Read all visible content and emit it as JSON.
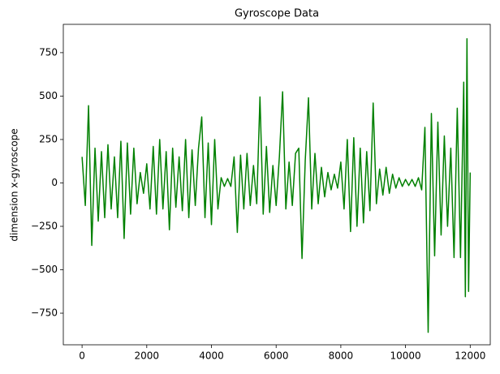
{
  "chart_data": {
    "type": "line",
    "title": "Gyroscope  Data",
    "y_label": "dimension x-gyroscope",
    "x": [
      0,
      100,
      200,
      300,
      400,
      500,
      600,
      700,
      800,
      900,
      1000,
      1100,
      1200,
      1300,
      1400,
      1500,
      1600,
      1700,
      1800,
      1900,
      2000,
      2100,
      2200,
      2300,
      2400,
      2500,
      2600,
      2700,
      2800,
      2900,
      3000,
      3100,
      3200,
      3300,
      3400,
      3500,
      3600,
      3700,
      3800,
      3900,
      4000,
      4100,
      4200,
      4300,
      4400,
      4500,
      4600,
      4700,
      4800,
      4900,
      5000,
      5100,
      5200,
      5300,
      5400,
      5500,
      5600,
      5700,
      5800,
      5900,
      6000,
      6100,
      6200,
      6300,
      6400,
      6500,
      6600,
      6700,
      6800,
      6900,
      7000,
      7100,
      7200,
      7300,
      7400,
      7500,
      7600,
      7700,
      7800,
      7900,
      8000,
      8100,
      8200,
      8300,
      8400,
      8500,
      8600,
      8700,
      8800,
      8900,
      9000,
      9100,
      9200,
      9300,
      9400,
      9500,
      9600,
      9700,
      9800,
      9900,
      10000,
      10100,
      10200,
      10300,
      10400,
      10500,
      10600,
      10700,
      10800,
      10900,
      11000,
      11100,
      11200,
      11300,
      11400,
      11500,
      11600,
      11700,
      11800,
      11850,
      11900,
      11950,
      12000
    ],
    "series": [
      {
        "name": "x-gyroscope",
        "color": "#008000",
        "values": [
          150,
          -130,
          445,
          -360,
          200,
          -220,
          180,
          -200,
          220,
          -150,
          150,
          -200,
          240,
          -320,
          230,
          -180,
          200,
          -120,
          60,
          -60,
          110,
          -150,
          210,
          -180,
          250,
          -150,
          180,
          -270,
          200,
          -140,
          150,
          -160,
          250,
          -200,
          190,
          -130,
          200,
          380,
          -200,
          230,
          -240,
          250,
          -150,
          30,
          -20,
          25,
          -20,
          150,
          -285,
          160,
          -150,
          170,
          -130,
          100,
          -120,
          495,
          -180,
          210,
          -170,
          100,
          -130,
          150,
          525,
          -150,
          120,
          -130,
          170,
          200,
          -435,
          130,
          490,
          -150,
          170,
          -120,
          90,
          -80,
          60,
          -40,
          50,
          -30,
          120,
          -150,
          250,
          -280,
          260,
          -250,
          200,
          -230,
          180,
          -160,
          460,
          -120,
          80,
          -70,
          90,
          -60,
          50,
          -30,
          30,
          -20,
          20,
          -15,
          20,
          -20,
          30,
          -40,
          320,
          -860,
          400,
          -420,
          350,
          -300,
          270,
          -250,
          200,
          -430,
          430,
          -430,
          580,
          -655,
          830,
          -625,
          60
        ]
      }
    ],
    "xlim": [
      -580,
      12620
    ],
    "ylim": [
      -932,
      913
    ],
    "xticks": [
      0,
      2000,
      4000,
      6000,
      8000,
      10000,
      12000
    ],
    "yticks": [
      {
        "value": -750,
        "label": "−750"
      },
      {
        "value": -500,
        "label": "−500"
      },
      {
        "value": -250,
        "label": "−250"
      },
      0,
      250,
      500,
      750
    ]
  }
}
